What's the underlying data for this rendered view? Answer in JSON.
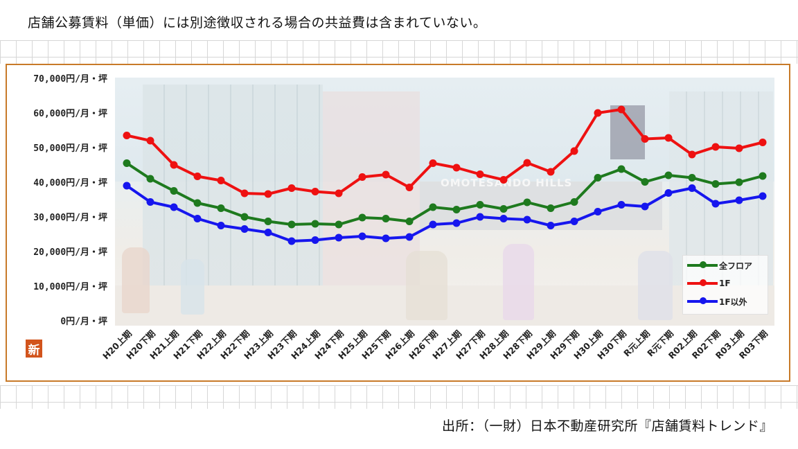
{
  "header": {
    "note": "店舗公募賃料（単価）には別途徴収される場合の共益費は含まれていない。"
  },
  "footer": {
    "source": "出所：（一財）日本不動産研究所『店舗賃料トレンド』"
  },
  "badge": {
    "label": "新"
  },
  "photo": {
    "sign_text": "OMOTESANDO HILLS"
  },
  "chart_data": {
    "type": "line",
    "title": "",
    "xlabel": "",
    "ylabel": "",
    "ylim": [
      0,
      70000
    ],
    "yticks": [
      0,
      10000,
      20000,
      30000,
      40000,
      50000,
      60000,
      70000
    ],
    "ytick_labels": [
      "0円/月・坪",
      "10,000円/月・坪",
      "20,000円/月・坪",
      "30,000円/月・坪",
      "40,000円/月・坪",
      "50,000円/月・坪",
      "60,000円/月・坪",
      "70,000円/月・坪"
    ],
    "categories": [
      "H20上期",
      "H20下期",
      "H21上期",
      "H21下期",
      "H22上期",
      "H22下期",
      "H23上期",
      "H23下期",
      "H24上期",
      "H24下期",
      "H25上期",
      "H25下期",
      "H26上期",
      "H26下期",
      "H27上期",
      "H27下期",
      "H28上期",
      "H28下期",
      "H29上期",
      "H29下期",
      "H30上期",
      "H30下期",
      "R元上期",
      "R元下期",
      "R02上期",
      "R02下期",
      "R03上期",
      "R03下期"
    ],
    "series": [
      {
        "name": "全フロア",
        "color": "#1e7a1e",
        "values": [
          45500,
          41000,
          37500,
          34000,
          32500,
          30000,
          28700,
          27800,
          28000,
          27800,
          29800,
          29500,
          28700,
          32800,
          32100,
          33500,
          32300,
          34200,
          32500,
          34300,
          41300,
          43800,
          40100,
          42000,
          41300,
          39500,
          40000,
          41800
        ]
      },
      {
        "name": "1F",
        "color": "#ee1111",
        "values": [
          53500,
          52000,
          45000,
          41700,
          40500,
          36800,
          36600,
          38300,
          37300,
          36800,
          41500,
          42200,
          38500,
          45500,
          44200,
          42300,
          40700,
          45600,
          43000,
          49000,
          60000,
          61000,
          52500,
          52800,
          48000,
          50200,
          49800,
          51500
        ]
      },
      {
        "name": "1F以外",
        "color": "#1616ee",
        "values": [
          39000,
          34300,
          32800,
          29500,
          27500,
          26500,
          25500,
          23000,
          23300,
          24000,
          24400,
          23800,
          24200,
          27800,
          28200,
          30000,
          29500,
          29200,
          27500,
          28700,
          31500,
          33500,
          33000,
          36900,
          38300,
          33800,
          34800,
          36000
        ]
      }
    ],
    "legend": "bottom-right",
    "grid": false
  }
}
